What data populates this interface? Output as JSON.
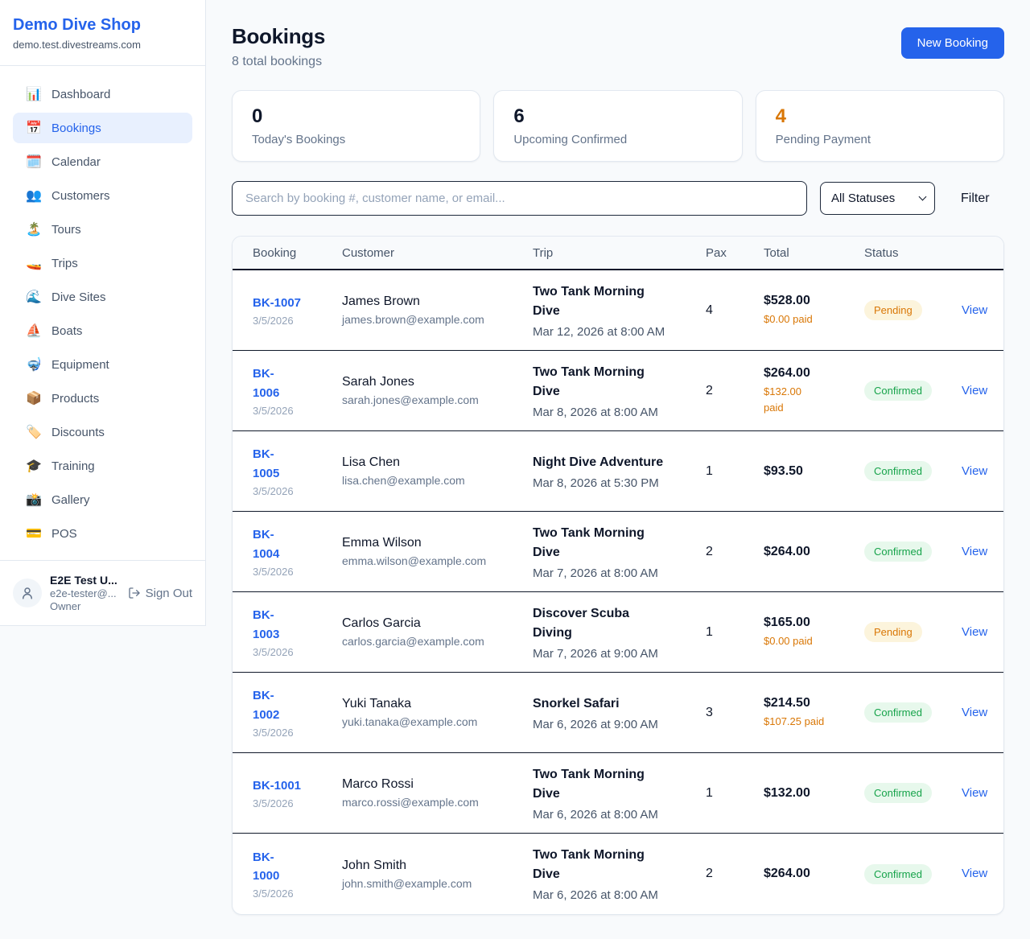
{
  "sidebar": {
    "brand": {
      "name": "Demo Dive Shop",
      "domain": "demo.test.divestreams.com"
    },
    "items": [
      {
        "label": "Dashboard",
        "icon": "📊",
        "icon_name": "bar-chart-icon",
        "active": false
      },
      {
        "label": "Bookings",
        "icon": "📅",
        "icon_name": "calendar-icon",
        "active": true
      },
      {
        "label": "Calendar",
        "icon": "🗓️",
        "icon_name": "spiral-calendar-icon",
        "active": false
      },
      {
        "label": "Customers",
        "icon": "👥",
        "icon_name": "users-icon",
        "active": false
      },
      {
        "label": "Tours",
        "icon": "🏝️",
        "icon_name": "island-icon",
        "active": false
      },
      {
        "label": "Trips",
        "icon": "🚤",
        "icon_name": "speedboat-icon",
        "active": false
      },
      {
        "label": "Dive Sites",
        "icon": "🌊",
        "icon_name": "wave-icon",
        "active": false
      },
      {
        "label": "Boats",
        "icon": "⛵",
        "icon_name": "sailboat-icon",
        "active": false
      },
      {
        "label": "Equipment",
        "icon": "🤿",
        "icon_name": "diving-mask-icon",
        "active": false
      },
      {
        "label": "Products",
        "icon": "📦",
        "icon_name": "package-icon",
        "active": false
      },
      {
        "label": "Discounts",
        "icon": "🏷️",
        "icon_name": "tag-icon",
        "active": false
      },
      {
        "label": "Training",
        "icon": "🎓",
        "icon_name": "graduation-cap-icon",
        "active": false
      },
      {
        "label": "Gallery",
        "icon": "📸",
        "icon_name": "camera-icon",
        "active": false
      },
      {
        "label": "POS",
        "icon": "💳",
        "icon_name": "credit-card-icon",
        "active": false
      }
    ],
    "user": {
      "name": "E2E Test U...",
      "email": "e2e-tester@...",
      "role": "Owner",
      "sign_out_label": "Sign Out"
    }
  },
  "header": {
    "title": "Bookings",
    "subtitle": "8 total bookings",
    "new_booking_label": "New Booking"
  },
  "stats": [
    {
      "value": "0",
      "label": "Today's Bookings",
      "color": "dark"
    },
    {
      "value": "6",
      "label": "Upcoming Confirmed",
      "color": "dark"
    },
    {
      "value": "4",
      "label": "Pending Payment",
      "color": "orange"
    }
  ],
  "filters": {
    "search_placeholder": "Search by booking #, customer name, or email...",
    "status_selected": "All Statuses",
    "filter_label": "Filter"
  },
  "table": {
    "columns": [
      "Booking",
      "Customer",
      "Trip",
      "Pax",
      "Total",
      "Status"
    ],
    "view_label": "View",
    "rows": [
      {
        "id": "BK-1007",
        "id_wrapped": false,
        "date": "3/5/2026",
        "customer": "James Brown",
        "email": "james.brown@example.com",
        "trip": "Two Tank Morning Dive",
        "trip_datetime": "Mar 12, 2026 at 8:00 AM",
        "pax": "4",
        "total": "$528.00",
        "paid": "$0.00 paid",
        "paid_wrapped": false,
        "status": "Pending"
      },
      {
        "id": "BK-1006",
        "id_wrapped": true,
        "date": "3/5/2026",
        "customer": "Sarah Jones",
        "email": "sarah.jones@example.com",
        "trip": "Two Tank Morning Dive",
        "trip_datetime": "Mar 8, 2026 at 8:00 AM",
        "pax": "2",
        "total": "$264.00",
        "paid": "$132.00 paid",
        "paid_wrapped": true,
        "status": "Confirmed"
      },
      {
        "id": "BK-1005",
        "id_wrapped": true,
        "date": "3/5/2026",
        "customer": "Lisa Chen",
        "email": "lisa.chen@example.com",
        "trip": "Night Dive Adventure",
        "trip_datetime": "Mar 8, 2026 at 5:30 PM",
        "pax": "1",
        "total": "$93.50",
        "paid": "",
        "paid_wrapped": false,
        "status": "Confirmed"
      },
      {
        "id": "BK-1004",
        "id_wrapped": true,
        "date": "3/5/2026",
        "customer": "Emma Wilson",
        "email": "emma.wilson@example.com",
        "trip": "Two Tank Morning Dive",
        "trip_datetime": "Mar 7, 2026 at 8:00 AM",
        "pax": "2",
        "total": "$264.00",
        "paid": "",
        "paid_wrapped": false,
        "status": "Confirmed"
      },
      {
        "id": "BK-1003",
        "id_wrapped": true,
        "date": "3/5/2026",
        "customer": "Carlos Garcia",
        "email": "carlos.garcia@example.com",
        "trip": "Discover Scuba Diving",
        "trip_datetime": "Mar 7, 2026 at 9:00 AM",
        "pax": "1",
        "total": "$165.00",
        "paid": "$0.00 paid",
        "paid_wrapped": false,
        "status": "Pending"
      },
      {
        "id": "BK-1002",
        "id_wrapped": true,
        "date": "3/5/2026",
        "customer": "Yuki Tanaka",
        "email": "yuki.tanaka@example.com",
        "trip": "Snorkel Safari",
        "trip_datetime": "Mar 6, 2026 at 9:00 AM",
        "pax": "3",
        "total": "$214.50",
        "paid": "$107.25 paid",
        "paid_wrapped": false,
        "status": "Confirmed"
      },
      {
        "id": "BK-1001",
        "id_wrapped": false,
        "date": "3/5/2026",
        "customer": "Marco Rossi",
        "email": "marco.rossi@example.com",
        "trip": "Two Tank Morning Dive",
        "trip_datetime": "Mar 6, 2026 at 8:00 AM",
        "pax": "1",
        "total": "$132.00",
        "paid": "",
        "paid_wrapped": false,
        "status": "Confirmed"
      },
      {
        "id": "BK-1000",
        "id_wrapped": true,
        "date": "3/5/2026",
        "customer": "John Smith",
        "email": "john.smith@example.com",
        "trip": "Two Tank Morning Dive",
        "trip_datetime": "Mar 6, 2026 at 8:00 AM",
        "pax": "2",
        "total": "$264.00",
        "paid": "",
        "paid_wrapped": false,
        "status": "Confirmed"
      }
    ]
  },
  "colors": {
    "accent_blue": "#2563eb",
    "warning_orange": "#d97706",
    "success_green": "#16a34a",
    "pending_badge_bg": "#fcf4dc",
    "confirmed_badge_bg": "#e7f8ec"
  }
}
